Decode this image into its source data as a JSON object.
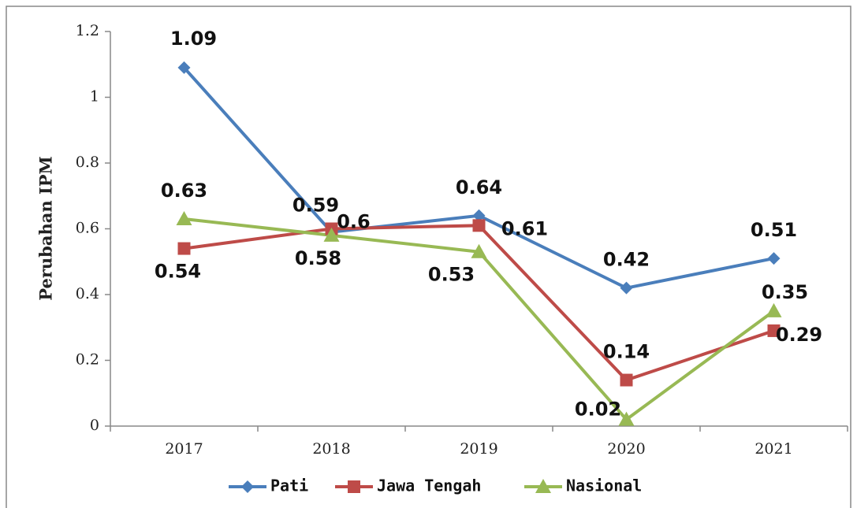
{
  "chart_data": {
    "type": "line",
    "y_label": "Perubahan IPM",
    "categories": [
      "2017",
      "2018",
      "2019",
      "2020",
      "2021"
    ],
    "series": [
      {
        "name": "Pati",
        "color": "#4a7ebb",
        "marker": "diamond",
        "values": [
          1.09,
          0.59,
          0.64,
          0.42,
          0.51
        ]
      },
      {
        "name": "Jawa Tengah",
        "color": "#be4b48",
        "marker": "square",
        "values": [
          0.54,
          0.6,
          0.61,
          0.14,
          0.29
        ]
      },
      {
        "name": "Nasional",
        "color": "#98b954",
        "marker": "triangle",
        "values": [
          0.63,
          0.58,
          0.53,
          0.02,
          0.35
        ]
      }
    ],
    "ylim": [
      0,
      1.2
    ],
    "yticks": [
      0,
      0.2,
      0.4,
      0.6,
      0.8,
      1,
      1.2
    ],
    "grid": false,
    "legend": "bottom"
  }
}
